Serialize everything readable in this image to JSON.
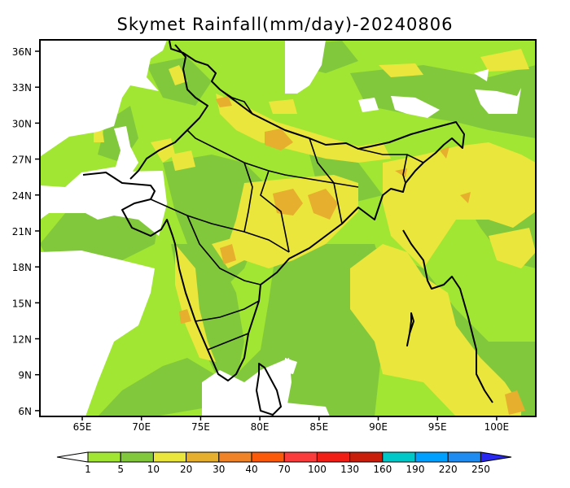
{
  "title": "Skymet Rainfall(mm/day)-20240806",
  "x_axis": {
    "ticks": [
      {
        "lon": 65,
        "label": "65E"
      },
      {
        "lon": 70,
        "label": "70E"
      },
      {
        "lon": 75,
        "label": "75E"
      },
      {
        "lon": 80,
        "label": "80E"
      },
      {
        "lon": 85,
        "label": "85E"
      },
      {
        "lon": 90,
        "label": "90E"
      },
      {
        "lon": 95,
        "label": "95E"
      },
      {
        "lon": 100,
        "label": "100E"
      }
    ]
  },
  "y_axis": {
    "ticks": [
      {
        "lat": 36,
        "label": "36N"
      },
      {
        "lat": 33,
        "label": "33N"
      },
      {
        "lat": 30,
        "label": "30N"
      },
      {
        "lat": 27,
        "label": "27N"
      },
      {
        "lat": 24,
        "label": "24N"
      },
      {
        "lat": 21,
        "label": "21N"
      },
      {
        "lat": 18,
        "label": "18N"
      },
      {
        "lat": 15,
        "label": "15N"
      },
      {
        "lat": 12,
        "label": "12N"
      },
      {
        "lat": 9,
        "label": "9N"
      },
      {
        "lat": 6,
        "label": "6N"
      }
    ]
  },
  "colorbar": {
    "levels": [
      "1",
      "5",
      "10",
      "20",
      "30",
      "40",
      "70",
      "100",
      "130",
      "160",
      "190",
      "220",
      "250"
    ],
    "colors": [
      "#a0e632",
      "#82c83c",
      "#ebe63c",
      "#e6af2d",
      "#f08228",
      "#fa5a0a",
      "#fa3c3c",
      "#f01e14",
      "#c81e0a",
      "#00c8c8",
      "#00a0ff",
      "#1e8cf0",
      "#2828f0"
    ],
    "under_color": "#ffffff",
    "over_color": "#2828f0"
  }
}
